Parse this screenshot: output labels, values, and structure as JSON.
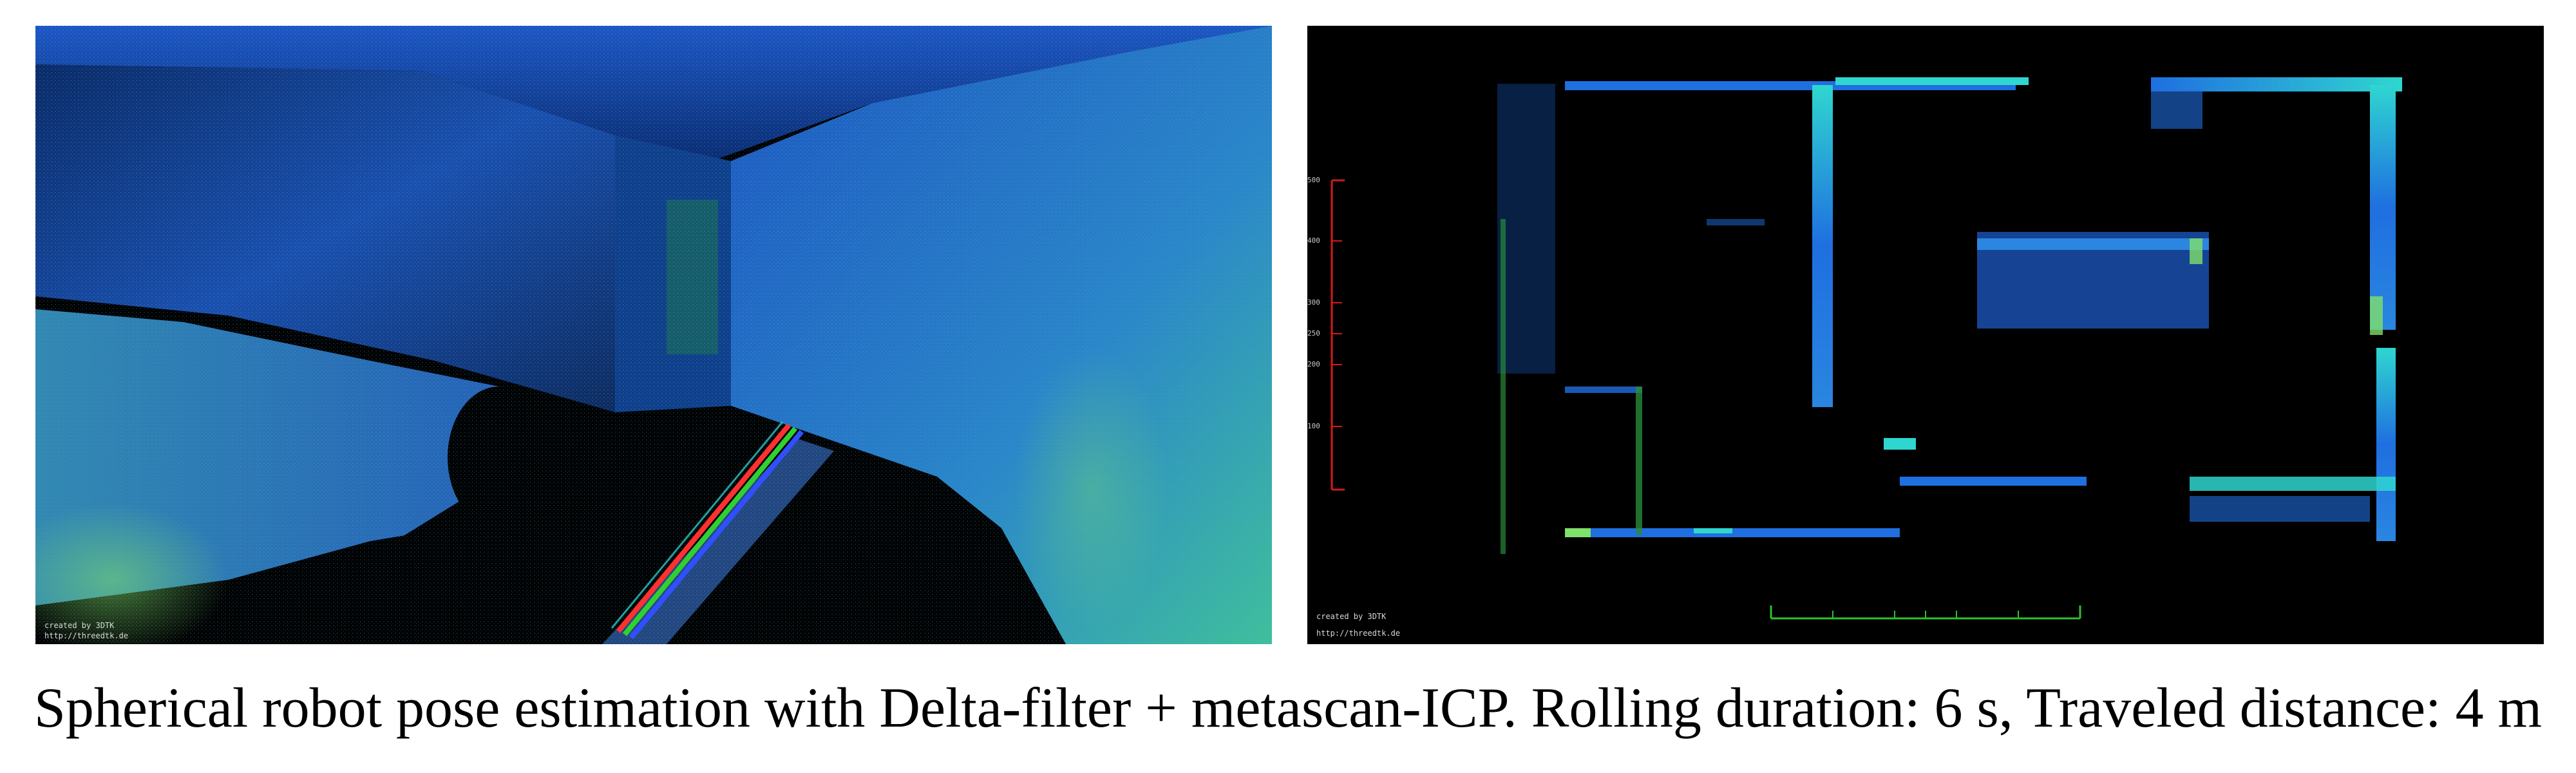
{
  "left_panel": {
    "watermark_line1": "created by 3DTK",
    "watermark_line2": "http://threedtk.de"
  },
  "right_panel": {
    "watermark_line1": "created by 3DTK",
    "watermark_line2": "http://threedtk.de",
    "scale_labels": [
      "500",
      "400",
      "300",
      "250",
      "200",
      "100"
    ]
  },
  "caption": "Spherical robot pose estimation with Delta-filter + metascan-ICP. Rolling duration: 6 s, Traveled distance: 4 m",
  "colors": {
    "background": "#000000",
    "point_blue": "#1f6fe0",
    "point_cyan": "#2fd6d0",
    "point_green": "#7fe06a",
    "scale_red": "#d11a1a",
    "scale_green": "#2fbf2f"
  }
}
